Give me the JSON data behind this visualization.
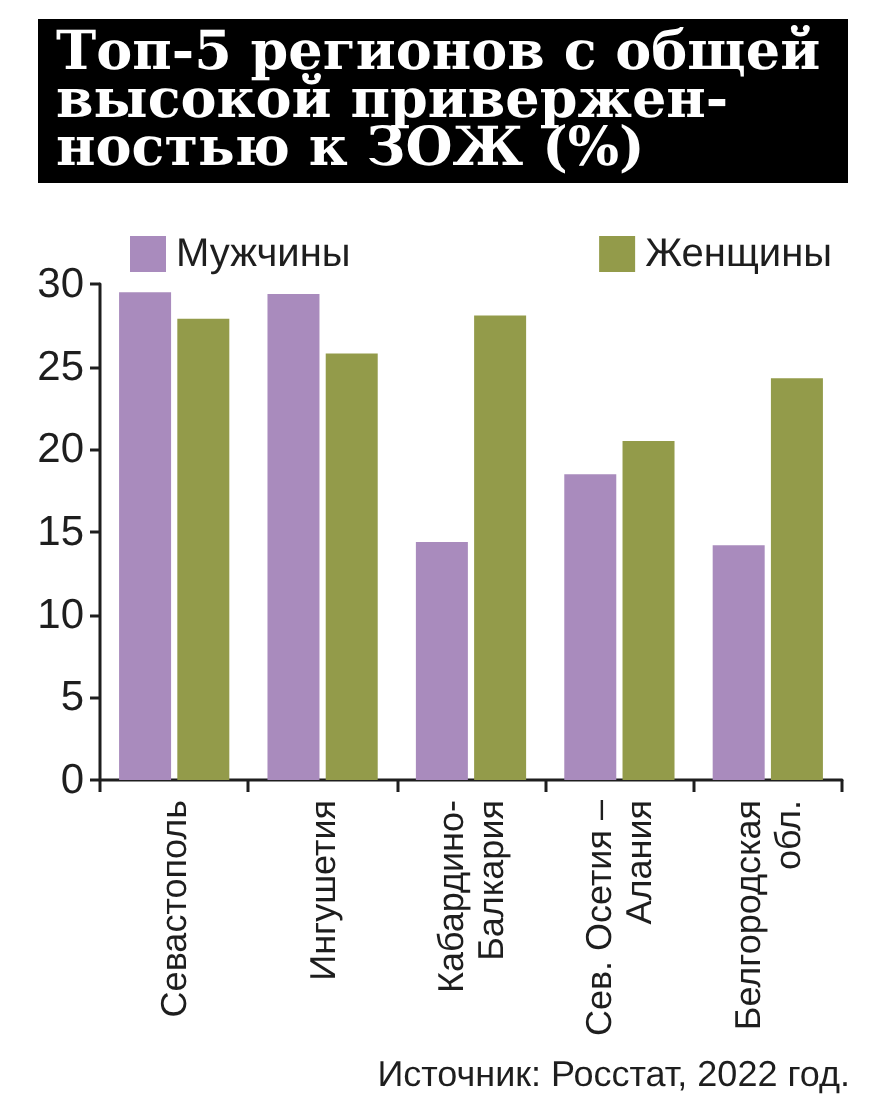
{
  "chart_data": {
    "type": "bar",
    "title": "Топ-5 регионов с общей\nвысокой привержен-\nностью к ЗОЖ (%)",
    "categories": [
      "Севастополь",
      "Ингушетия",
      "Кабардино-\nБалкария",
      "Сев. Осетия –\nАлания",
      "Белгородская\nобл."
    ],
    "series": [
      {
        "name": "Мужчины",
        "color": "#a98bbd",
        "values": [
          29.5,
          29.4,
          14.4,
          18.5,
          14.2
        ]
      },
      {
        "name": "Женщины",
        "color": "#939b4a",
        "values": [
          27.9,
          25.8,
          28.1,
          20.5,
          24.3
        ]
      }
    ],
    "ylim": [
      0,
      30
    ],
    "yticks": [
      0,
      5,
      10,
      15,
      20,
      25,
      30
    ],
    "grid": false,
    "legend": "top",
    "annotations": [
      "Источник: Росстат, 2022 год."
    ]
  }
}
